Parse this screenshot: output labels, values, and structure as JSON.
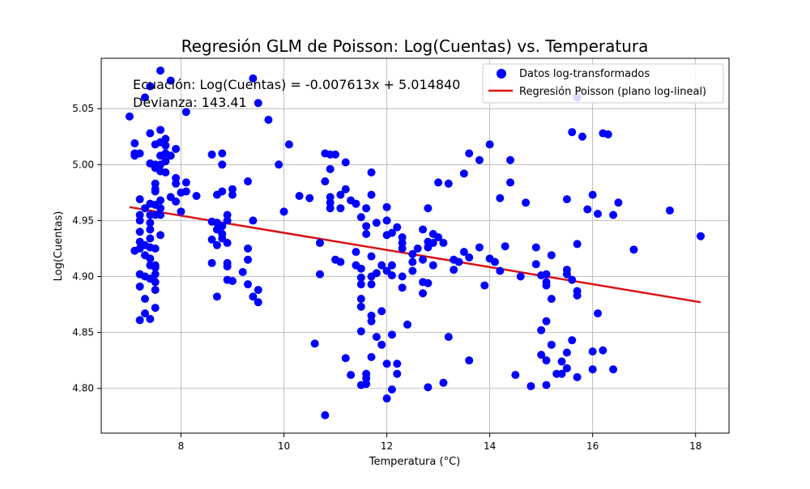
{
  "chart_data": {
    "type": "scatter",
    "title": "Regresión GLM de Poisson: Log(Cuentas) vs. Temperatura",
    "xlabel": "Temperatura (°C)",
    "ylabel": "Log(Cuentas)",
    "xlim": [
      6.45,
      18.65
    ],
    "ylim": [
      4.76,
      5.095
    ],
    "xticks": [
      8,
      10,
      12,
      14,
      16,
      18
    ],
    "yticks": [
      4.8,
      4.85,
      4.9,
      4.95,
      5.0,
      5.05
    ],
    "xtick_labels": [
      "8",
      "10",
      "12",
      "14",
      "16",
      "18"
    ],
    "ytick_labels": [
      "4.80",
      "4.85",
      "4.90",
      "4.95",
      "5.00",
      "5.05"
    ],
    "grid": true,
    "legend_position": "top-right",
    "annotations": [
      "Ecuación: Log(Cuentas) = -0.007613x + 5.014840",
      "Devianza: 143.41"
    ],
    "series": [
      {
        "name": "Datos log-transformados",
        "kind": "scatter",
        "color": "#0000ff",
        "points": [
          [
            7.0,
            5.043
          ],
          [
            7.1,
            5.019
          ],
          [
            7.1,
            5.01
          ],
          [
            7.1,
            5.008
          ],
          [
            7.1,
            4.923
          ],
          [
            7.2,
            5.01
          ],
          [
            7.2,
            4.969
          ],
          [
            7.2,
            4.955
          ],
          [
            7.2,
            4.95
          ],
          [
            7.2,
            4.94
          ],
          [
            7.2,
            4.931
          ],
          [
            7.2,
            4.925
          ],
          [
            7.2,
            4.902
          ],
          [
            7.2,
            4.891
          ],
          [
            7.2,
            4.861
          ],
          [
            7.3,
            5.06
          ],
          [
            7.3,
            4.961
          ],
          [
            7.3,
            4.928
          ],
          [
            7.3,
            4.919
          ],
          [
            7.3,
            4.9
          ],
          [
            7.3,
            4.88
          ],
          [
            7.3,
            4.867
          ],
          [
            7.4,
            5.07
          ],
          [
            7.4,
            5.028
          ],
          [
            7.4,
            5.001
          ],
          [
            7.4,
            4.965
          ],
          [
            7.4,
            4.955
          ],
          [
            7.4,
            4.948
          ],
          [
            7.4,
            4.942
          ],
          [
            7.4,
            4.934
          ],
          [
            7.4,
            4.926
          ],
          [
            7.4,
            4.916
          ],
          [
            7.4,
            4.91
          ],
          [
            7.4,
            4.898
          ],
          [
            7.4,
            4.862
          ],
          [
            7.5,
            5.0
          ],
          [
            7.5,
            4.983
          ],
          [
            7.5,
            4.976
          ],
          [
            7.5,
            4.964
          ],
          [
            7.5,
            4.955
          ],
          [
            7.5,
            4.925
          ],
          [
            7.5,
            4.91
          ],
          [
            7.5,
            4.902
          ],
          [
            7.5,
            4.895
          ],
          [
            7.5,
            4.888
          ],
          [
            7.5,
            4.872
          ],
          [
            7.5,
            4.997
          ],
          [
            7.5,
            5.018
          ],
          [
            7.5,
            4.978
          ],
          [
            7.5,
            4.908
          ],
          [
            7.6,
            5.084
          ],
          [
            7.6,
            5.031
          ],
          [
            7.6,
            5.02
          ],
          [
            7.6,
            5.008
          ],
          [
            7.6,
            5.0
          ],
          [
            7.6,
            4.968
          ],
          [
            7.6,
            4.961
          ],
          [
            7.6,
            4.955
          ],
          [
            7.6,
            4.937
          ],
          [
            7.6,
            4.994
          ],
          [
            7.7,
            5.023
          ],
          [
            7.7,
            5.017
          ],
          [
            7.7,
            5.01
          ],
          [
            7.7,
            5.003
          ],
          [
            7.7,
            4.993
          ],
          [
            7.8,
            5.075
          ],
          [
            7.8,
            5.008
          ],
          [
            7.8,
            4.971
          ],
          [
            7.9,
            5.014
          ],
          [
            7.9,
            4.988
          ],
          [
            7.9,
            4.983
          ],
          [
            7.9,
            4.967
          ],
          [
            8.0,
            4.975
          ],
          [
            8.0,
            4.958
          ],
          [
            8.1,
            5.047
          ],
          [
            8.1,
            4.984
          ],
          [
            8.1,
            4.976
          ],
          [
            8.3,
            4.972
          ],
          [
            8.6,
            5.009
          ],
          [
            8.6,
            4.949
          ],
          [
            8.6,
            4.933
          ],
          [
            8.6,
            4.912
          ],
          [
            8.7,
            4.973
          ],
          [
            8.7,
            4.948
          ],
          [
            8.7,
            4.942
          ],
          [
            8.7,
            4.928
          ],
          [
            8.7,
            4.882
          ],
          [
            8.8,
            5.01
          ],
          [
            8.8,
            5.0
          ],
          [
            8.8,
            4.976
          ],
          [
            8.8,
            4.945
          ],
          [
            8.8,
            4.938
          ],
          [
            8.8,
            4.934
          ],
          [
            8.9,
            4.955
          ],
          [
            8.9,
            4.95
          ],
          [
            8.9,
            4.93
          ],
          [
            8.9,
            4.912
          ],
          [
            8.9,
            4.909
          ],
          [
            8.9,
            4.897
          ],
          [
            9.0,
            4.978
          ],
          [
            9.0,
            4.973
          ],
          [
            9.0,
            4.896
          ],
          [
            9.2,
            4.904
          ],
          [
            9.3,
            4.985
          ],
          [
            9.3,
            4.925
          ],
          [
            9.3,
            4.915
          ],
          [
            9.3,
            4.893
          ],
          [
            9.4,
            5.077
          ],
          [
            9.4,
            4.95
          ],
          [
            9.4,
            4.882
          ],
          [
            9.5,
            5.055
          ],
          [
            9.5,
            4.888
          ],
          [
            9.5,
            4.877
          ],
          [
            9.7,
            5.04
          ],
          [
            9.9,
            5.0
          ],
          [
            10.0,
            4.958
          ],
          [
            10.1,
            5.018
          ],
          [
            10.3,
            4.972
          ],
          [
            10.5,
            4.97
          ],
          [
            10.6,
            4.84
          ],
          [
            10.7,
            4.902
          ],
          [
            10.7,
            4.93
          ],
          [
            10.8,
            5.01
          ],
          [
            10.8,
            4.985
          ],
          [
            10.8,
            4.776
          ],
          [
            10.9,
            5.009
          ],
          [
            10.9,
            4.996
          ],
          [
            10.9,
            4.971
          ],
          [
            10.9,
            4.966
          ],
          [
            10.9,
            4.961
          ],
          [
            11.0,
            5.009
          ],
          [
            11.0,
            4.915
          ],
          [
            11.1,
            4.973
          ],
          [
            11.1,
            4.961
          ],
          [
            11.1,
            4.913
          ],
          [
            11.2,
            5.002
          ],
          [
            11.2,
            4.978
          ],
          [
            11.2,
            4.827
          ],
          [
            11.3,
            4.968
          ],
          [
            11.3,
            4.812
          ],
          [
            11.4,
            4.965
          ],
          [
            11.4,
            4.922
          ],
          [
            11.4,
            4.91
          ],
          [
            11.5,
            4.953
          ],
          [
            11.5,
            4.907
          ],
          [
            11.5,
            4.899
          ],
          [
            11.5,
            4.893
          ],
          [
            11.5,
            4.88
          ],
          [
            11.5,
            4.873
          ],
          [
            11.5,
            4.851
          ],
          [
            11.5,
            4.803
          ],
          [
            11.6,
            4.961
          ],
          [
            11.6,
            4.945
          ],
          [
            11.6,
            4.938
          ],
          [
            11.6,
            4.813
          ],
          [
            11.6,
            4.809
          ],
          [
            11.6,
            4.804
          ],
          [
            11.7,
            4.993
          ],
          [
            11.7,
            4.973
          ],
          [
            11.7,
            4.918
          ],
          [
            11.7,
            4.9
          ],
          [
            11.7,
            4.893
          ],
          [
            11.7,
            4.865
          ],
          [
            11.7,
            4.86
          ],
          [
            11.7,
            4.828
          ],
          [
            11.8,
            4.948
          ],
          [
            11.8,
            4.903
          ],
          [
            11.8,
            4.846
          ],
          [
            11.9,
            4.91
          ],
          [
            11.9,
            4.869
          ],
          [
            11.9,
            4.839
          ],
          [
            12.0,
            4.962
          ],
          [
            12.0,
            4.95
          ],
          [
            12.0,
            4.937
          ],
          [
            12.0,
            4.905
          ],
          [
            12.0,
            4.822
          ],
          [
            12.0,
            4.791
          ],
          [
            12.1,
            4.939
          ],
          [
            12.1,
            4.91
          ],
          [
            12.1,
            4.901
          ],
          [
            12.1,
            4.848
          ],
          [
            12.1,
            4.799
          ],
          [
            12.2,
            4.944
          ],
          [
            12.2,
            4.822
          ],
          [
            12.2,
            4.813
          ],
          [
            12.3,
            4.935
          ],
          [
            12.3,
            4.93
          ],
          [
            12.3,
            4.925
          ],
          [
            12.3,
            4.9
          ],
          [
            12.3,
            4.89
          ],
          [
            12.4,
            4.857
          ],
          [
            12.5,
            4.92
          ],
          [
            12.5,
            4.913
          ],
          [
            12.5,
            4.905
          ],
          [
            12.6,
            4.925
          ],
          [
            12.7,
            4.942
          ],
          [
            12.7,
            4.915
          ],
          [
            12.7,
            4.895
          ],
          [
            12.7,
            4.885
          ],
          [
            12.8,
            4.961
          ],
          [
            12.8,
            4.931
          ],
          [
            12.8,
            4.926
          ],
          [
            12.8,
            4.894
          ],
          [
            12.8,
            4.801
          ],
          [
            12.9,
            4.938
          ],
          [
            12.9,
            4.93
          ],
          [
            12.9,
            4.91
          ],
          [
            13.0,
            4.984
          ],
          [
            13.0,
            4.935
          ],
          [
            13.1,
            4.93
          ],
          [
            13.1,
            4.805
          ],
          [
            13.2,
            4.983
          ],
          [
            13.2,
            4.846
          ],
          [
            13.3,
            4.915
          ],
          [
            13.3,
            4.906
          ],
          [
            13.4,
            4.913
          ],
          [
            13.5,
            4.992
          ],
          [
            13.5,
            4.922
          ],
          [
            13.6,
            5.01
          ],
          [
            13.6,
            4.917
          ],
          [
            13.6,
            4.825
          ],
          [
            13.8,
            5.004
          ],
          [
            13.8,
            4.926
          ],
          [
            13.9,
            4.892
          ],
          [
            14.0,
            5.018
          ],
          [
            14.0,
            4.916
          ],
          [
            14.1,
            4.913
          ],
          [
            14.2,
            4.97
          ],
          [
            14.2,
            4.905
          ],
          [
            14.3,
            4.927
          ],
          [
            14.4,
            5.004
          ],
          [
            14.4,
            4.984
          ],
          [
            14.5,
            4.812
          ],
          [
            14.6,
            4.9
          ],
          [
            14.7,
            4.966
          ],
          [
            14.8,
            4.802
          ],
          [
            14.9,
            4.926
          ],
          [
            14.9,
            4.911
          ],
          [
            15.0,
            4.901
          ],
          [
            15.0,
            4.852
          ],
          [
            15.0,
            4.83
          ],
          [
            15.1,
            4.902
          ],
          [
            15.1,
            4.895
          ],
          [
            15.1,
            4.892
          ],
          [
            15.1,
            4.86
          ],
          [
            15.1,
            4.825
          ],
          [
            15.1,
            4.803
          ],
          [
            15.2,
            4.919
          ],
          [
            15.2,
            4.88
          ],
          [
            15.2,
            4.839
          ],
          [
            15.3,
            4.813
          ],
          [
            15.4,
            4.824
          ],
          [
            15.4,
            4.813
          ],
          [
            15.5,
            4.969
          ],
          [
            15.5,
            4.906
          ],
          [
            15.5,
            4.902
          ],
          [
            15.5,
            4.832
          ],
          [
            15.5,
            4.818
          ],
          [
            15.6,
            5.029
          ],
          [
            15.6,
            4.897
          ],
          [
            15.6,
            4.843
          ],
          [
            15.7,
            5.06
          ],
          [
            15.7,
            4.929
          ],
          [
            15.7,
            4.887
          ],
          [
            15.7,
            4.883
          ],
          [
            15.7,
            4.81
          ],
          [
            15.8,
            5.025
          ],
          [
            15.9,
            4.96
          ],
          [
            16.0,
            4.973
          ],
          [
            16.0,
            4.833
          ],
          [
            16.0,
            4.817
          ],
          [
            16.1,
            4.956
          ],
          [
            16.1,
            4.867
          ],
          [
            16.2,
            5.028
          ],
          [
            16.2,
            4.834
          ],
          [
            16.3,
            5.027
          ],
          [
            16.4,
            4.955
          ],
          [
            16.4,
            4.817
          ],
          [
            16.5,
            4.966
          ],
          [
            16.8,
            4.924
          ],
          [
            17.5,
            4.959
          ],
          [
            18.1,
            4.936
          ]
        ]
      },
      {
        "name": "Regresión Poisson (plano log-lineal)",
        "kind": "line",
        "color": "#dd1111",
        "points": [
          [
            7.0,
            4.962
          ],
          [
            18.1,
            4.877
          ]
        ]
      }
    ]
  }
}
